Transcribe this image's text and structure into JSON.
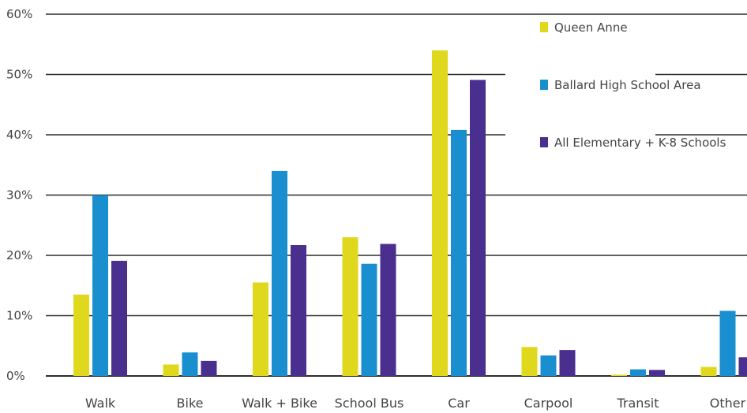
{
  "chart_data": {
    "type": "bar",
    "categories": [
      "Walk",
      "Bike",
      "Walk + Bike",
      "School Bus",
      "Car",
      "Carpool",
      "Transit",
      "Other"
    ],
    "series": [
      {
        "name": "Queen Anne",
        "color": "#e0d81c",
        "values": [
          13.5,
          1.9,
          15.5,
          23.0,
          54.0,
          4.8,
          0.2,
          1.5
        ]
      },
      {
        "name": "Ballard High School Area",
        "color": "#1a8fd0",
        "values": [
          30.0,
          3.9,
          34.0,
          18.6,
          40.8,
          3.4,
          1.1,
          10.8
        ]
      },
      {
        "name": "All Elementary + K-8 Schools",
        "color": "#4a2f8e",
        "values": [
          19.1,
          2.5,
          21.7,
          21.9,
          49.1,
          4.3,
          1.0,
          3.1
        ]
      }
    ],
    "yticks": [
      "0%",
      "10%",
      "20%",
      "30%",
      "40%",
      "50%",
      "60%"
    ],
    "ylim": [
      0,
      60
    ],
    "legend_position": "top-right",
    "grid": true
  }
}
